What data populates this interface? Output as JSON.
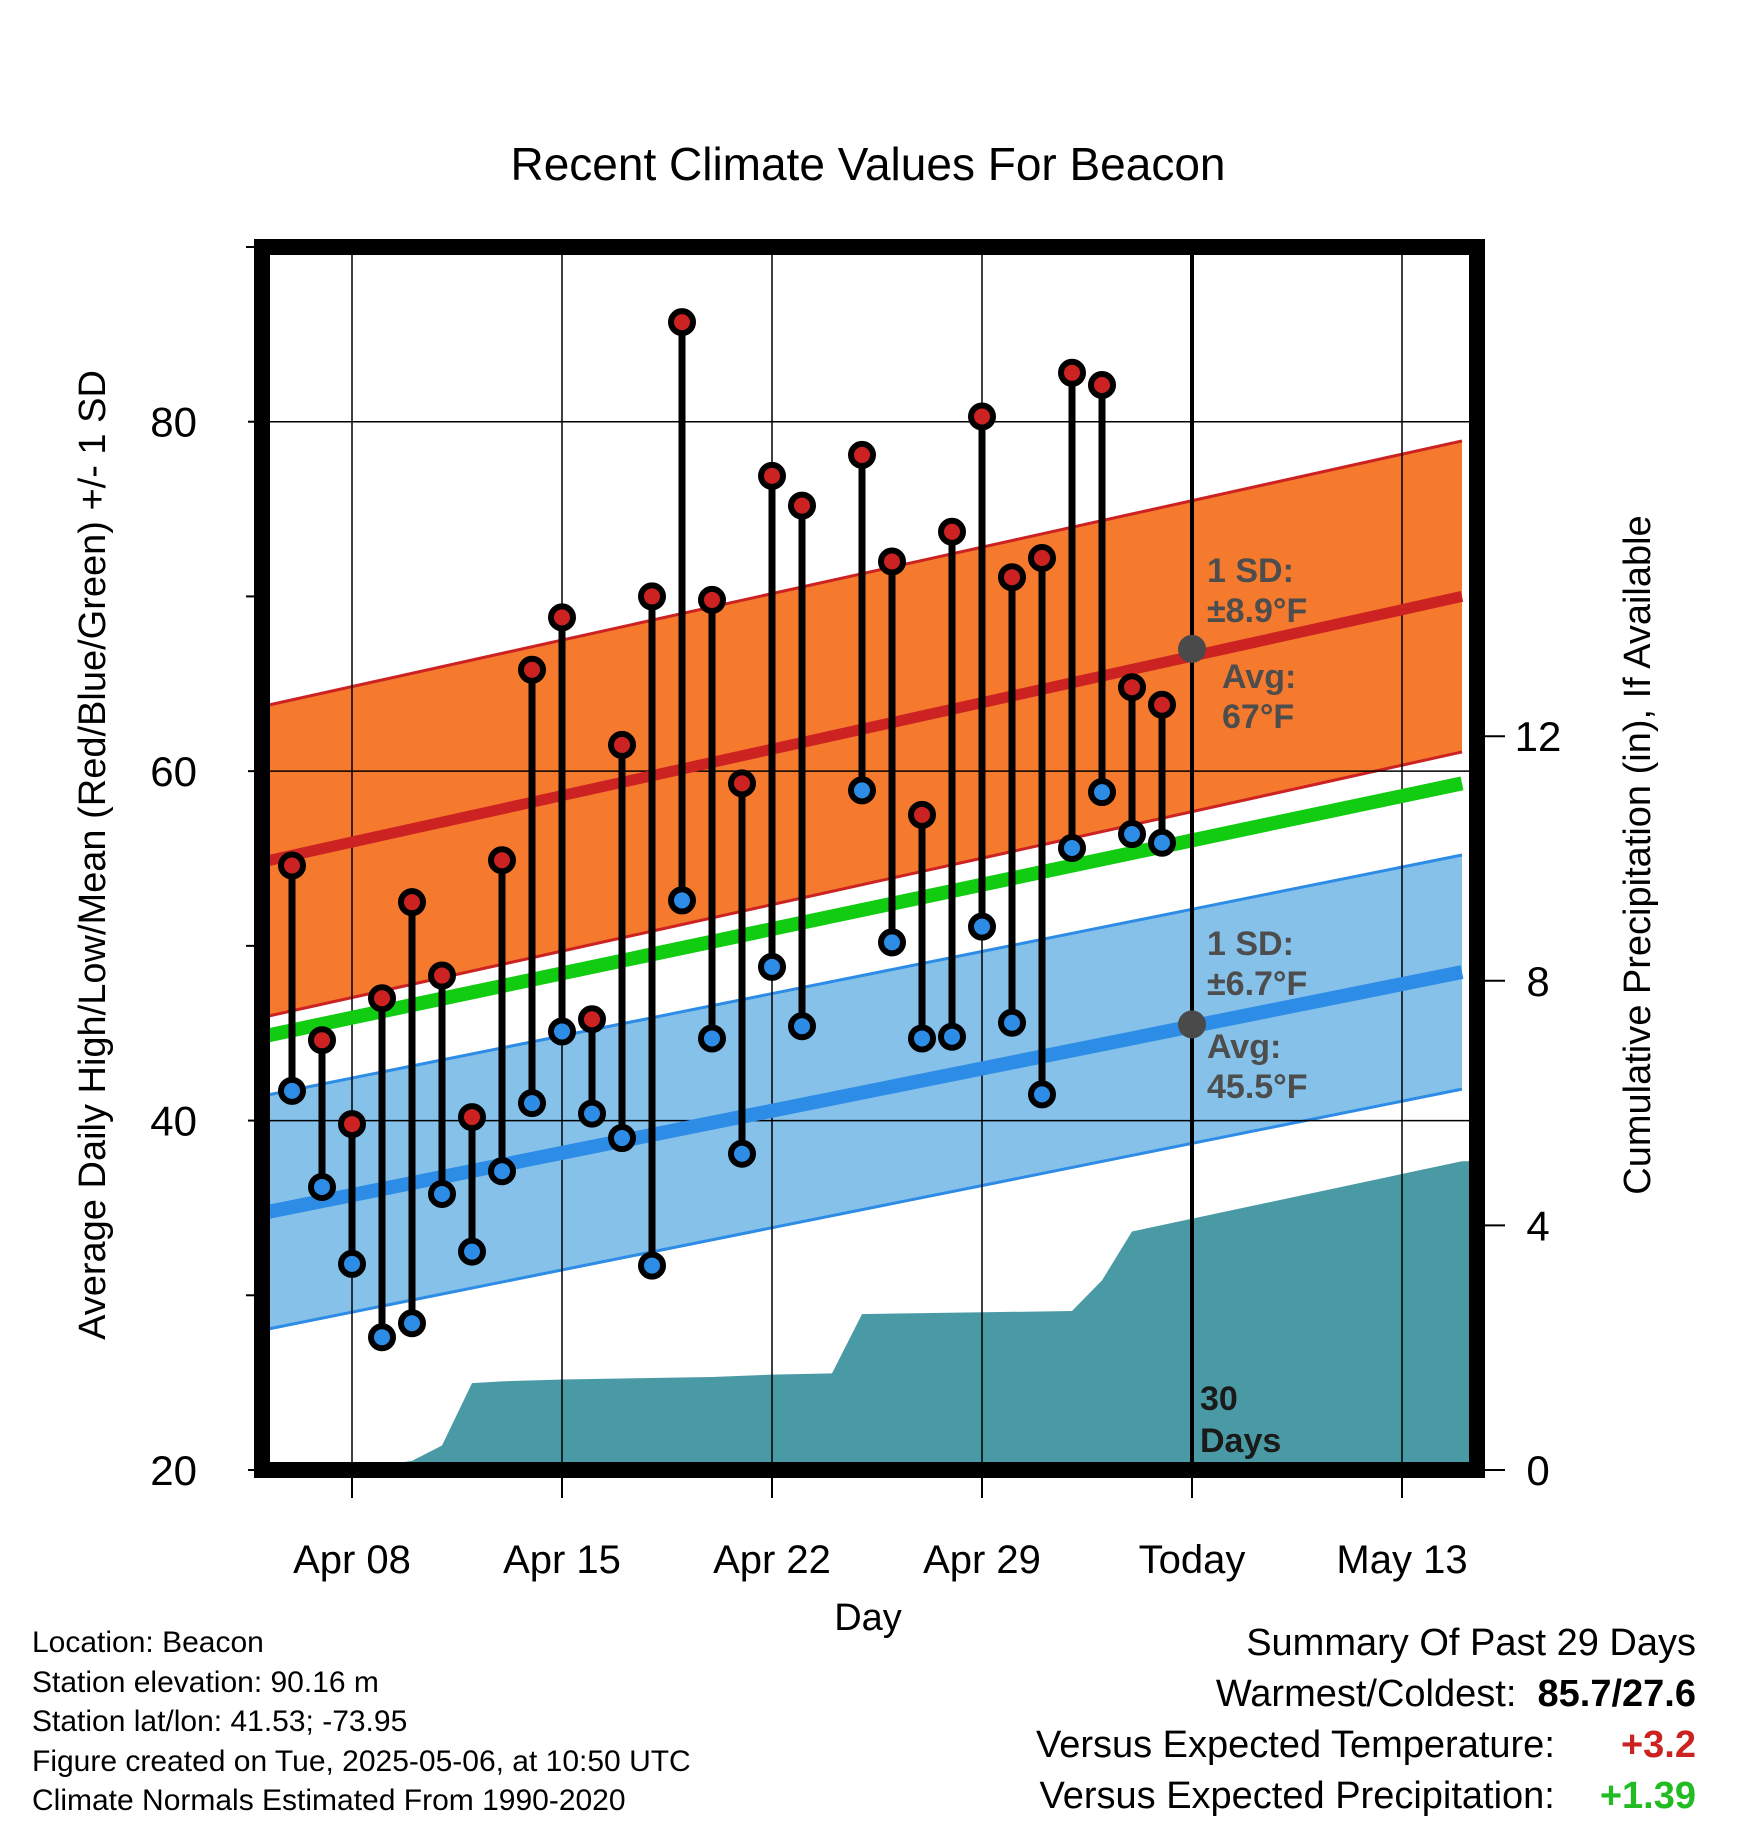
{
  "chart_data": {
    "type": "line",
    "title": "Recent Climate Values For Beacon",
    "xlabel": "Day",
    "ylabel": "Average Daily High/Low/Mean (Red/Blue/Green) +/- 1 SD",
    "y2label": "Cumulative Precipitation (in), If Available",
    "ylim": [
      20,
      90
    ],
    "y2lim": [
      0,
      20
    ],
    "yticks": [
      "20",
      "40",
      "60",
      "80"
    ],
    "y2ticks": [
      "0",
      "4",
      "8",
      "12"
    ],
    "xrange": [
      "2025-04-05",
      "2025-05-15"
    ],
    "xticks": [
      {
        "date": "2025-04-08",
        "label": "Apr 08"
      },
      {
        "date": "2025-04-15",
        "label": "Apr 15"
      },
      {
        "date": "2025-04-22",
        "label": "Apr 22"
      },
      {
        "date": "2025-04-29",
        "label": "Apr 29"
      },
      {
        "date": "2025-05-06",
        "label": "Today"
      },
      {
        "date": "2025-05-13",
        "label": "May 13"
      }
    ],
    "today": "2025-05-06",
    "window_label_1": "30",
    "window_label_2": "Days",
    "high_annotation": {
      "sd_title": "1 SD:",
      "sd_value": "±8.9°F",
      "avg_title": "Avg:",
      "avg_value": "67°F",
      "avg": 67.0
    },
    "low_annotation": {
      "sd_title": "1 SD:",
      "sd_value": "±6.7°F",
      "avg_title": "Avg:",
      "avg_value": "45.5°F",
      "avg": 45.5
    },
    "normals": {
      "dates": [
        "2025-04-05",
        "2025-05-15"
      ],
      "high_mean": [
        54.8,
        70.0
      ],
      "high_sd": 8.9,
      "low_mean": [
        34.7,
        48.5
      ],
      "low_sd": 6.7,
      "mean": [
        44.8,
        59.3
      ]
    },
    "series": [
      {
        "name": "High",
        "color": "#cc2222",
        "dates": [
          "2025-04-06",
          "2025-04-07",
          "2025-04-08",
          "2025-04-09",
          "2025-04-10",
          "2025-04-11",
          "2025-04-12",
          "2025-04-13",
          "2025-04-14",
          "2025-04-15",
          "2025-04-16",
          "2025-04-17",
          "2025-04-18",
          "2025-04-19",
          "2025-04-20",
          "2025-04-21",
          "2025-04-22",
          "2025-04-23",
          "2025-04-25",
          "2025-04-26",
          "2025-04-27",
          "2025-04-28",
          "2025-04-29",
          "2025-04-30",
          "2025-05-01",
          "2025-05-02",
          "2025-05-03",
          "2025-05-04",
          "2025-05-05"
        ],
        "values": [
          54.6,
          44.6,
          39.8,
          47.0,
          52.5,
          48.3,
          40.2,
          54.9,
          65.8,
          68.8,
          45.8,
          61.5,
          70.0,
          85.7,
          69.8,
          59.3,
          76.9,
          75.2,
          78.1,
          72.0,
          57.5,
          73.7,
          80.3,
          71.1,
          72.2,
          82.8,
          82.1,
          64.8,
          63.8
        ]
      },
      {
        "name": "Low",
        "color": "#2d8ce6",
        "dates": [
          "2025-04-06",
          "2025-04-07",
          "2025-04-08",
          "2025-04-09",
          "2025-04-10",
          "2025-04-11",
          "2025-04-12",
          "2025-04-13",
          "2025-04-14",
          "2025-04-15",
          "2025-04-16",
          "2025-04-17",
          "2025-04-18",
          "2025-04-19",
          "2025-04-20",
          "2025-04-21",
          "2025-04-22",
          "2025-04-23",
          "2025-04-25",
          "2025-04-26",
          "2025-04-27",
          "2025-04-28",
          "2025-04-29",
          "2025-04-30",
          "2025-05-01",
          "2025-05-02",
          "2025-05-03",
          "2025-05-04",
          "2025-05-05"
        ],
        "values": [
          41.7,
          36.2,
          31.8,
          27.6,
          28.4,
          35.8,
          32.5,
          37.1,
          41.0,
          45.1,
          40.4,
          39.0,
          31.7,
          52.6,
          44.7,
          38.1,
          48.8,
          45.4,
          58.9,
          50.2,
          44.7,
          44.8,
          51.1,
          45.6,
          41.5,
          55.6,
          58.8,
          56.4,
          55.9
        ]
      },
      {
        "name": "Cumulative Precipitation",
        "color": "#4a9aa5",
        "dates": [
          "2025-04-05",
          "2025-04-07",
          "2025-04-09",
          "2025-04-10",
          "2025-04-11",
          "2025-04-12",
          "2025-04-13",
          "2025-04-15",
          "2025-04-20",
          "2025-04-22",
          "2025-04-24",
          "2025-04-25",
          "2025-05-02",
          "2025-05-03",
          "2025-05-04",
          "2025-05-15"
        ],
        "values": [
          0,
          0.05,
          0.08,
          0.15,
          0.4,
          1.42,
          1.45,
          1.48,
          1.52,
          1.56,
          1.58,
          2.55,
          2.6,
          3.1,
          3.9,
          5.05
        ]
      }
    ],
    "grid": true
  },
  "info": {
    "location": "Location: Beacon",
    "elevation": "Station elevation: 90.16 m",
    "latlon": "Station lat/lon: 41.53; -73.95",
    "created": "Figure created on Tue, 2025-05-06, at 10:50 UTC",
    "normals": "Climate Normals Estimated From 1990-2020"
  },
  "summary": {
    "title": "Summary Of Past 29 Days",
    "warm_cold_label": "Warmest/Coldest:",
    "warm_cold_value": "85.7/27.6",
    "temp_label": "Versus Expected Temperature:",
    "temp_value": "+3.2",
    "precip_label": "Versus Expected Precipitation:",
    "precip_value": "+1.39"
  },
  "colors": {
    "high_band": "#f57a2e",
    "high_line": "#cc2222",
    "low_band": "#85c1e9",
    "low_line": "#2d8ce6",
    "mean_line": "#11cc11",
    "precip_fill": "#4a9aa5"
  }
}
